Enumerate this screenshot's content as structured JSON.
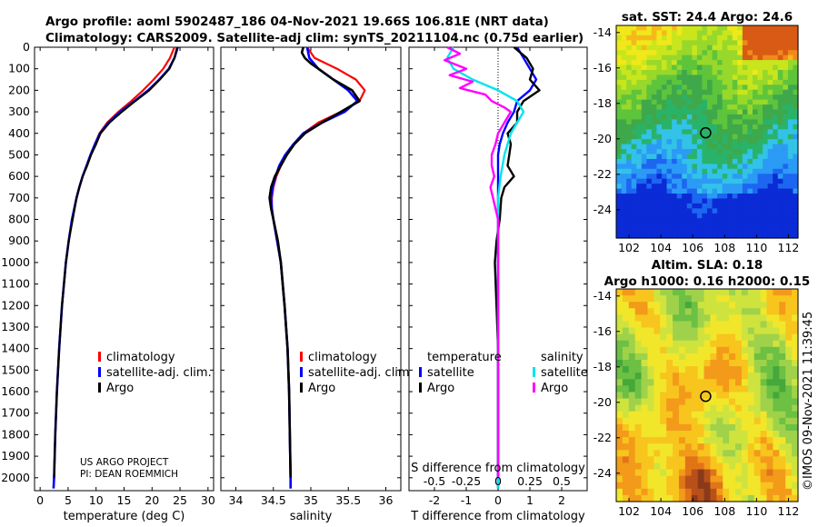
{
  "title_line1": "Argo profile: aoml 5902487_186 04-Nov-2021 19.66S 106.81E (NRT data)",
  "title_line2": "Climatology: CARS2009. Satellite-adj clim: synTS_20211104.nc (0.75d earlier)",
  "sst_title": "sat. SST: 24.4 Argo: 24.6",
  "sla_title1": "Altim. SLA: 0.18",
  "sla_title2": "Argo h1000: 0.16 h2000: 0.15",
  "timestamp": "©IMOS 09-Nov-2021 11:39:45",
  "credit_line1": "US ARGO PROJECT",
  "credit_line2": "PI: DEAN ROEMMICH",
  "colors": {
    "climatology": "#ff0000",
    "satellite": "#0000ff",
    "argo": "#000000",
    "salinity_satellite": "#00e5ee",
    "salinity_argo": "#ff00ff"
  },
  "chart_data": [
    {
      "type": "line",
      "id": "temperature",
      "xlabel": "temperature (deg C)",
      "xlim": [
        -1,
        31
      ],
      "xticks": [
        "0",
        "5",
        "10",
        "15",
        "20",
        "25",
        "30"
      ],
      "ylim": [
        2060,
        0
      ],
      "yticks": [
        "0",
        "100",
        "200",
        "300",
        "400",
        "500",
        "600",
        "700",
        "800",
        "900",
        "1000",
        "1100",
        "1200",
        "1300",
        "1400",
        "1500",
        "1600",
        "1700",
        "1800",
        "1900",
        "2000"
      ],
      "legend": [
        "climatology",
        "satellite-adj. clim.",
        "Argo"
      ],
      "series": [
        {
          "name": "climatology",
          "depth": [
            0,
            50,
            100,
            150,
            200,
            250,
            300,
            350,
            400,
            450,
            500,
            550,
            600,
            650,
            700,
            800,
            900,
            1000,
            1200,
            1400,
            1600,
            1800,
            2000,
            2050
          ],
          "values": [
            24.0,
            23.2,
            22.0,
            20.3,
            18.4,
            16.3,
            14.0,
            12.0,
            10.6,
            9.8,
            9.0,
            8.3,
            7.6,
            7.0,
            6.5,
            5.7,
            5.1,
            4.6,
            3.9,
            3.4,
            3.0,
            2.7,
            2.5,
            2.4
          ]
        },
        {
          "name": "satellite-adj. clim.",
          "depth": [
            0,
            50,
            100,
            150,
            200,
            250,
            300,
            350,
            400,
            450,
            500,
            550,
            600,
            650,
            700,
            800,
            900,
            1000,
            1200,
            1400,
            1600,
            1800,
            2000,
            2050
          ],
          "values": [
            24.6,
            24.0,
            23.0,
            21.3,
            19.3,
            16.9,
            14.3,
            12.2,
            10.7,
            9.8,
            9.0,
            8.3,
            7.6,
            7.0,
            6.5,
            5.7,
            5.1,
            4.6,
            3.9,
            3.4,
            3.0,
            2.7,
            2.5,
            2.4
          ]
        },
        {
          "name": "Argo",
          "depth": [
            0,
            50,
            100,
            150,
            200,
            250,
            300,
            350,
            400,
            450,
            500,
            550,
            600,
            650,
            700,
            800,
            900,
            1000,
            1200,
            1400,
            1600,
            1800,
            2000
          ],
          "values": [
            24.5,
            24.0,
            23.1,
            21.4,
            19.5,
            17.0,
            14.6,
            12.4,
            10.8,
            10.0,
            9.1,
            8.4,
            7.6,
            7.0,
            6.5,
            5.8,
            5.1,
            4.6,
            3.9,
            3.4,
            3.0,
            2.7,
            2.5
          ]
        }
      ]
    },
    {
      "type": "line",
      "id": "salinity",
      "xlabel": "salinity",
      "xlim": [
        33.8,
        36.2
      ],
      "xticks": [
        "34",
        "34.5",
        "35",
        "35.5",
        "36"
      ],
      "ylim": [
        2060,
        0
      ],
      "legend": [
        "climatology",
        "satellite-adj. clim.",
        "Argo"
      ],
      "series": [
        {
          "name": "climatology",
          "depth": [
            0,
            50,
            100,
            150,
            200,
            250,
            300,
            350,
            400,
            450,
            500,
            550,
            600,
            650,
            700,
            750,
            800,
            900,
            1000,
            1200,
            1400,
            1600,
            1800,
            2000,
            2050
          ],
          "values": [
            34.95,
            35.05,
            35.35,
            35.6,
            35.72,
            35.65,
            35.4,
            35.1,
            34.9,
            34.77,
            34.68,
            34.6,
            34.54,
            34.5,
            34.48,
            34.48,
            34.5,
            34.55,
            34.6,
            34.65,
            34.69,
            34.71,
            34.72,
            34.73,
            34.73
          ]
        },
        {
          "name": "satellite-adj. clim.",
          "depth": [
            0,
            50,
            100,
            150,
            200,
            250,
            300,
            350,
            400,
            450,
            500,
            550,
            600,
            650,
            700,
            750,
            800,
            900,
            1000,
            1200,
            1400,
            1600,
            1800,
            2000,
            2050
          ],
          "values": [
            34.95,
            34.98,
            35.1,
            35.3,
            35.5,
            35.62,
            35.45,
            35.15,
            34.9,
            34.77,
            34.66,
            34.58,
            34.53,
            34.49,
            34.47,
            34.48,
            34.5,
            34.55,
            34.6,
            34.65,
            34.69,
            34.71,
            34.72,
            34.73,
            34.73
          ]
        },
        {
          "name": "Argo",
          "depth": [
            0,
            25,
            50,
            75,
            100,
            150,
            200,
            250,
            280,
            300,
            350,
            400,
            450,
            500,
            550,
            600,
            650,
            700,
            750,
            800,
            900,
            1000,
            1200,
            1400,
            1600,
            1800,
            2000
          ],
          "values": [
            34.9,
            34.88,
            34.92,
            35.0,
            35.1,
            35.3,
            35.55,
            35.65,
            35.5,
            35.4,
            35.15,
            34.92,
            34.78,
            34.68,
            34.6,
            34.52,
            34.47,
            34.45,
            34.47,
            34.5,
            34.56,
            34.6,
            34.65,
            34.69,
            34.71,
            34.72,
            34.73
          ]
        }
      ]
    },
    {
      "type": "line",
      "id": "difference",
      "xlabel": "T difference from climatology",
      "xlabel2": "S difference from climatology",
      "xlim": [
        -2.8,
        2.8
      ],
      "xticks": [
        "-2",
        "-1",
        "0",
        "1",
        "2"
      ],
      "s_ticks": [
        "-0.5",
        "-0.25",
        "0",
        "0.25",
        "0.5"
      ],
      "ylim": [
        2060,
        0
      ],
      "legend_temperature": [
        "temperature",
        "satellite",
        "Argo"
      ],
      "legend_salinity": [
        "salinity",
        "satellite",
        "Argo"
      ],
      "series": [
        {
          "name": "temperature satellite",
          "depth": [
            0,
            50,
            100,
            150,
            200,
            250,
            300,
            350,
            400,
            450,
            500,
            550,
            600,
            650,
            700,
            800,
            1000,
            1500,
            2050
          ],
          "values": [
            0.6,
            0.8,
            1.0,
            1.2,
            1.0,
            0.6,
            0.5,
            0.3,
            0.15,
            0.05,
            0.0,
            0.0,
            0.0,
            0.0,
            0.0,
            0.0,
            0.0,
            0.0,
            0.0
          ]
        },
        {
          "name": "temperature Argo",
          "depth": [
            0,
            50,
            100,
            150,
            200,
            250,
            300,
            350,
            400,
            450,
            500,
            550,
            600,
            650,
            700,
            800,
            900,
            1000,
            1200,
            1400,
            1600,
            1800,
            2000
          ],
          "values": [
            0.5,
            0.9,
            1.1,
            1.0,
            1.3,
            0.8,
            0.6,
            0.6,
            0.3,
            0.4,
            0.35,
            0.3,
            0.5,
            0.2,
            0.1,
            0.05,
            -0.05,
            -0.1,
            -0.05,
            0.0,
            0.0,
            0.0,
            0.0
          ]
        },
        {
          "name": "salinity satellite",
          "depth": [
            0,
            50,
            100,
            150,
            200,
            250,
            300,
            350,
            400,
            500,
            600,
            700,
            800,
            1000,
            1500,
            2050
          ],
          "values": [
            -0.35,
            -0.4,
            -0.35,
            -0.2,
            0.0,
            0.15,
            0.2,
            0.15,
            0.1,
            0.05,
            0.02,
            0.0,
            0.0,
            0.0,
            0.0,
            0.0
          ]
        },
        {
          "name": "salinity Argo",
          "depth": [
            0,
            30,
            60,
            100,
            130,
            160,
            190,
            220,
            250,
            280,
            300,
            350,
            400,
            450,
            500,
            550,
            600,
            650,
            700,
            750,
            800,
            900,
            1000,
            1200,
            1500,
            2000
          ],
          "values": [
            -0.4,
            -0.3,
            -0.42,
            -0.25,
            -0.38,
            -0.2,
            -0.3,
            -0.1,
            -0.05,
            0.05,
            0.1,
            0.05,
            0.0,
            -0.02,
            -0.05,
            -0.05,
            -0.03,
            -0.06,
            -0.04,
            -0.02,
            0.0,
            0.0,
            0.0,
            0.0,
            0.0,
            0.0
          ]
        }
      ]
    },
    {
      "type": "heatmap",
      "id": "sst_map",
      "title": "sat. SST: 24.4 Argo: 24.6",
      "xticks": [
        "102",
        "104",
        "106",
        "108",
        "110",
        "112"
      ],
      "yticks": [
        "-14",
        "-16",
        "-18",
        "-20",
        "-22",
        "-24"
      ],
      "xlim": [
        101.2,
        112.6
      ],
      "ylim": [
        -25.6,
        -13.6
      ],
      "profile_location": [
        106.81,
        -19.66
      ]
    },
    {
      "type": "heatmap",
      "id": "sla_map",
      "title": "Altim. SLA: 0.18",
      "xticks": [
        "102",
        "104",
        "106",
        "108",
        "110",
        "112"
      ],
      "yticks": [
        "-14",
        "-16",
        "-18",
        "-20",
        "-22",
        "-24"
      ],
      "xlim": [
        101.2,
        112.6
      ],
      "ylim": [
        -25.6,
        -13.6
      ],
      "profile_location": [
        106.81,
        -19.66
      ]
    }
  ]
}
